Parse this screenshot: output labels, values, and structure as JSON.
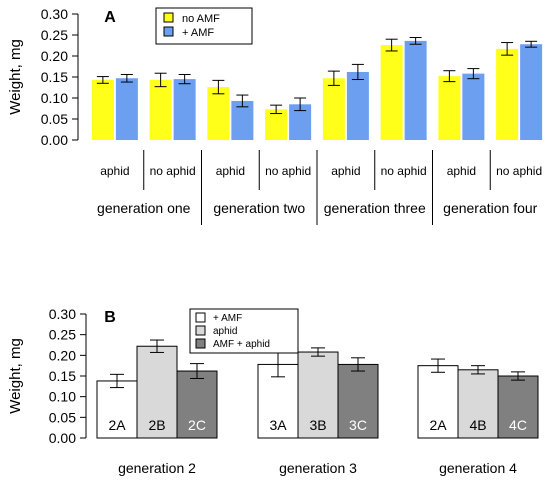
{
  "chart_data": [
    {
      "panel": "A",
      "type": "bar",
      "ylabel": "Weight, mg",
      "ylim": [
        0,
        0.3
      ],
      "yticks": [
        "0.00",
        "0.05",
        "0.10",
        "0.15",
        "0.20",
        "0.25",
        "0.30"
      ],
      "categories": [
        "aphid",
        "no aphid",
        "aphid",
        "no aphid",
        "aphid",
        "no aphid",
        "aphid",
        "no aphid"
      ],
      "groups": [
        "generation one",
        "generation two",
        "generation three",
        "generation four"
      ],
      "legend_position": "top",
      "series": [
        {
          "name": "no AMF",
          "color": "#ffff1a",
          "values": [
            0.143,
            0.143,
            0.126,
            0.073,
            0.147,
            0.226,
            0.152,
            0.217
          ],
          "errors": [
            0.008,
            0.016,
            0.016,
            0.01,
            0.017,
            0.014,
            0.013,
            0.015
          ]
        },
        {
          "name": "+ AMF",
          "color": "#6c9ff0",
          "values": [
            0.147,
            0.145,
            0.093,
            0.085,
            0.162,
            0.236,
            0.158,
            0.228
          ],
          "errors": [
            0.009,
            0.011,
            0.014,
            0.015,
            0.018,
            0.008,
            0.012,
            0.007
          ]
        }
      ]
    },
    {
      "panel": "B",
      "type": "bar",
      "ylabel": "Weight, mg",
      "ylim": [
        0,
        0.3
      ],
      "yticks": [
        "0.00",
        "0.05",
        "0.10",
        "0.15",
        "0.20",
        "0.25",
        "0.30"
      ],
      "categories": [
        "generation 2",
        "generation 3",
        "generation 4"
      ],
      "legend_position": "top",
      "series": [
        {
          "name": "+ AMF",
          "color": "#ffffff",
          "values": [
            0.138,
            0.178,
            0.175
          ],
          "errors": [
            0.016,
            0.03,
            0.016
          ],
          "labels": [
            "2A",
            "3A",
            "2A"
          ]
        },
        {
          "name": "aphid",
          "color": "#d9d9d9",
          "values": [
            0.222,
            0.208,
            0.165
          ],
          "errors": [
            0.015,
            0.01,
            0.01
          ],
          "labels": [
            "2B",
            "3B",
            "4B"
          ]
        },
        {
          "name": "AMF + aphid",
          "color": "#808080",
          "values": [
            0.162,
            0.178,
            0.15
          ],
          "errors": [
            0.018,
            0.016,
            0.01
          ],
          "labels": [
            "2C",
            "3C",
            "4C"
          ]
        }
      ]
    }
  ]
}
